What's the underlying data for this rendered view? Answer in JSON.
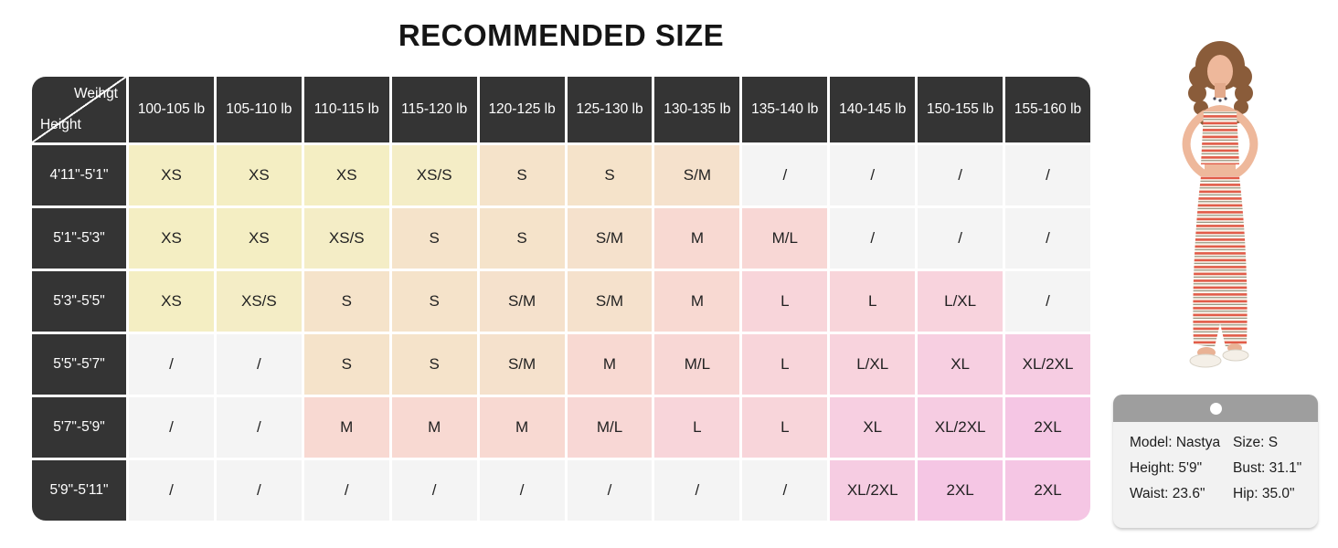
{
  "title": "RECOMMENDED SIZE",
  "chart_data": {
    "type": "table",
    "title": "RECOMMENDED SIZE",
    "corner": {
      "top_label": "Weihgt",
      "bottom_label": "Height"
    },
    "columns": [
      "100-105 lb",
      "105-110 lb",
      "110-115 lb",
      "115-120 lb",
      "120-125 lb",
      "125-130 lb",
      "130-135 lb",
      "135-140 lb",
      "140-145 lb",
      "150-155 lb",
      "155-160 lb"
    ],
    "rows": [
      {
        "height": "4'11\"-5'1\"",
        "sizes": [
          "XS",
          "XS",
          "XS",
          "XS/S",
          "S",
          "S",
          "S/M",
          "/",
          "/",
          "/",
          "/"
        ]
      },
      {
        "height": "5'1\"-5'3\"",
        "sizes": [
          "XS",
          "XS",
          "XS/S",
          "S",
          "S",
          "S/M",
          "M",
          "M/L",
          "/",
          "/",
          "/"
        ]
      },
      {
        "height": "5'3\"-5'5\"",
        "sizes": [
          "XS",
          "XS/S",
          "S",
          "S",
          "S/M",
          "S/M",
          "M",
          "L",
          "L",
          "L/XL",
          "/"
        ]
      },
      {
        "height": "5'5\"-5'7\"",
        "sizes": [
          "/",
          "/",
          "S",
          "S",
          "S/M",
          "M",
          "M/L",
          "L",
          "L/XL",
          "XL",
          "XL/2XL"
        ]
      },
      {
        "height": "5'7\"-5'9\"",
        "sizes": [
          "/",
          "/",
          "M",
          "M",
          "M",
          "M/L",
          "L",
          "L",
          "XL",
          "XL/2XL",
          "2XL"
        ]
      },
      {
        "height": "5'9\"-5'11\"",
        "sizes": [
          "/",
          "/",
          "/",
          "/",
          "/",
          "/",
          "/",
          "/",
          "XL/2XL",
          "2XL",
          "2XL"
        ]
      }
    ],
    "size_colors": {
      "XS": "#f4eec3",
      "XS/S": "#f4edc6",
      "S": "#f5e3ca",
      "S/M": "#f5e1cc",
      "M": "#f8d9d2",
      "M/L": "#f8d7d5",
      "L": "#f8d5da",
      "L/XL": "#f8d3dd",
      "XL": "#f7cfe1",
      "XL/2XL": "#f6cce2",
      "2XL": "#f5c6e4",
      "/": "#f4f4f4"
    },
    "header_bg": "#343434",
    "header_text_color": "#ffffff"
  },
  "model_card": {
    "model": "Model: Nastya",
    "size": "Size: S",
    "height": "Height: 5'9\"",
    "bust": "Bust: 31.1\"",
    "waist": "Waist: 23.6\"",
    "hip": "Hip: 35.0\""
  },
  "model_photo_colors": {
    "stripe_red": "#e15c49",
    "stripe_cream": "#faf5ec",
    "stripe_dark": "#83806a",
    "skin": "#eeb89b",
    "hair": "#8a5c3a"
  }
}
